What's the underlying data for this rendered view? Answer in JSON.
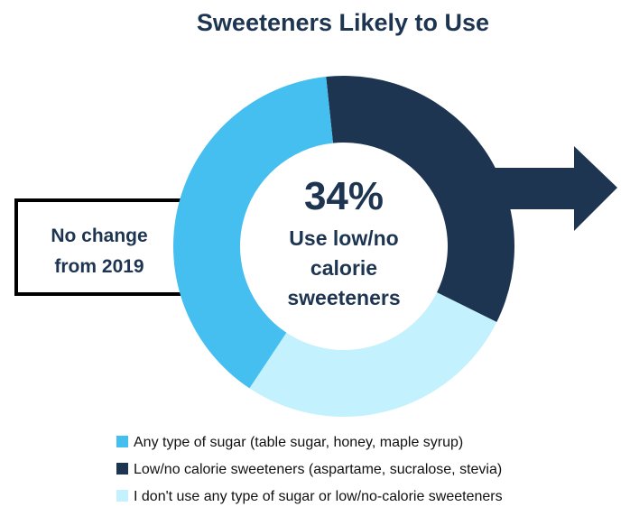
{
  "chart_data": {
    "type": "pie",
    "title": "Sweeteners Likely to Use",
    "donut": true,
    "categories": [
      "Any type of sugar (table sugar, honey, maple syrup)",
      "Low/no calorie sweeteners (aspartame, sucralose, stevia)",
      "I don't use any type of sugar or low/no-calorie sweeteners"
    ],
    "values": [
      39,
      34,
      27
    ],
    "colors": [
      "#45bff0",
      "#1e3552",
      "#c3f1fd"
    ],
    "legend_position": "bottom",
    "center_value": "34%",
    "center_label_lines": [
      "Use low/no",
      "calorie",
      "sweeteners"
    ],
    "callout_lines": [
      "No change",
      "from 2019"
    ]
  }
}
